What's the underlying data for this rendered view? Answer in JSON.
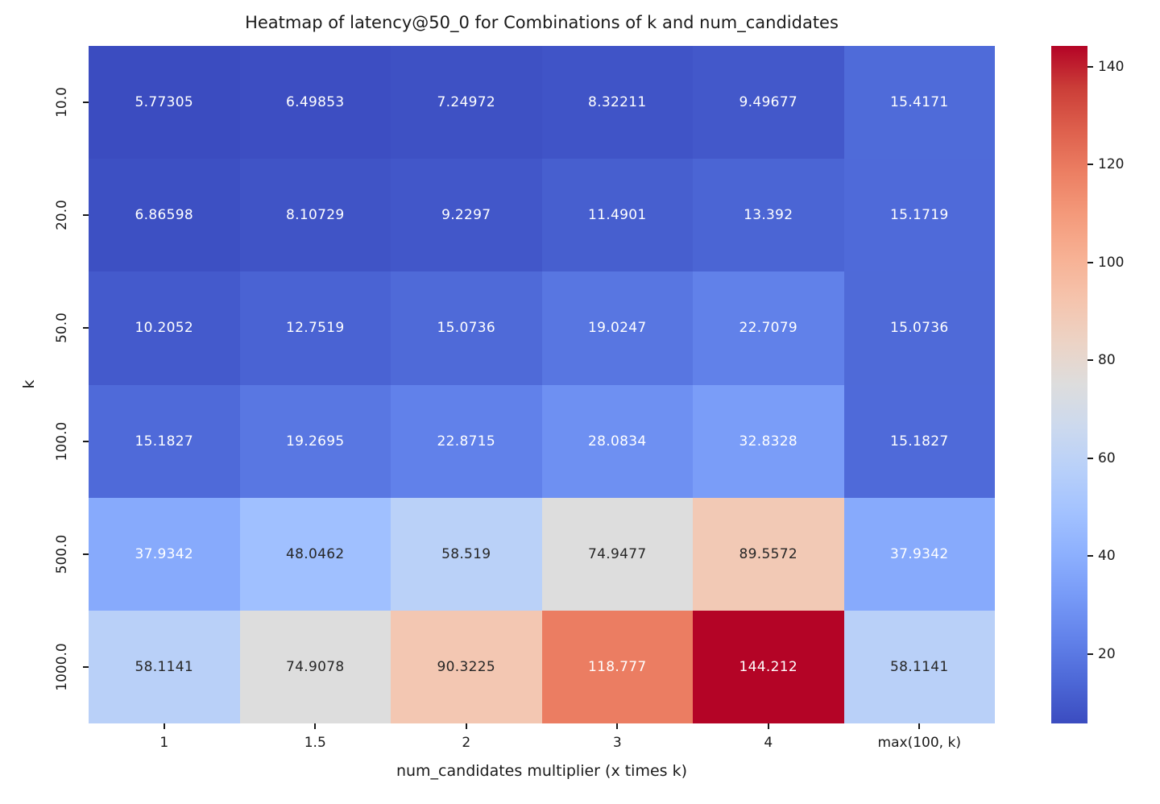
{
  "chart_data": {
    "type": "heatmap",
    "title": "Heatmap of latency@50_0 for Combinations of k and num_candidates",
    "xlabel": "num_candidates multiplier (x times k)",
    "ylabel": "k",
    "x_categories": [
      "1",
      "1.5",
      "2",
      "3",
      "4",
      "max(100, k)"
    ],
    "y_categories": [
      "10.0",
      "20.0",
      "50.0",
      "100.0",
      "500.0",
      "1000.0"
    ],
    "values": [
      [
        5.77305,
        6.49853,
        7.24972,
        8.32211,
        9.49677,
        15.4171
      ],
      [
        6.86598,
        8.10729,
        9.2297,
        11.4901,
        13.392,
        15.1719
      ],
      [
        10.2052,
        12.7519,
        15.0736,
        19.0247,
        22.7079,
        15.0736
      ],
      [
        15.1827,
        19.2695,
        22.8715,
        28.0834,
        32.8328,
        15.1827
      ],
      [
        37.9342,
        48.0462,
        58.519,
        74.9477,
        89.5572,
        37.9342
      ],
      [
        58.1141,
        74.9078,
        90.3225,
        118.777,
        144.212,
        58.1141
      ]
    ],
    "vmin": 5.77305,
    "vmax": 144.212,
    "colormap": "coolwarm",
    "colorbar_ticks": [
      20,
      40,
      60,
      80,
      100,
      120,
      140
    ],
    "colorbar_position": "right",
    "grid": false,
    "annotated": true
  },
  "colors": {
    "background": "#ffffff",
    "axis_text": "#1a1a1a",
    "annotation_light": "#ffffff",
    "annotation_dark": "#262626",
    "coolwarm_anchors": [
      "#3b4cc0",
      "#4d68d7",
      "#6282ea",
      "#779af7",
      "#8db0fe",
      "#a3c2ff",
      "#b8d0f9",
      "#ccd9ee",
      "#dddddd",
      "#ecd3c5",
      "#f5c4ad",
      "#f7b194",
      "#f49a7b",
      "#ec7f63",
      "#de604d",
      "#cb3e38",
      "#b40426"
    ]
  }
}
